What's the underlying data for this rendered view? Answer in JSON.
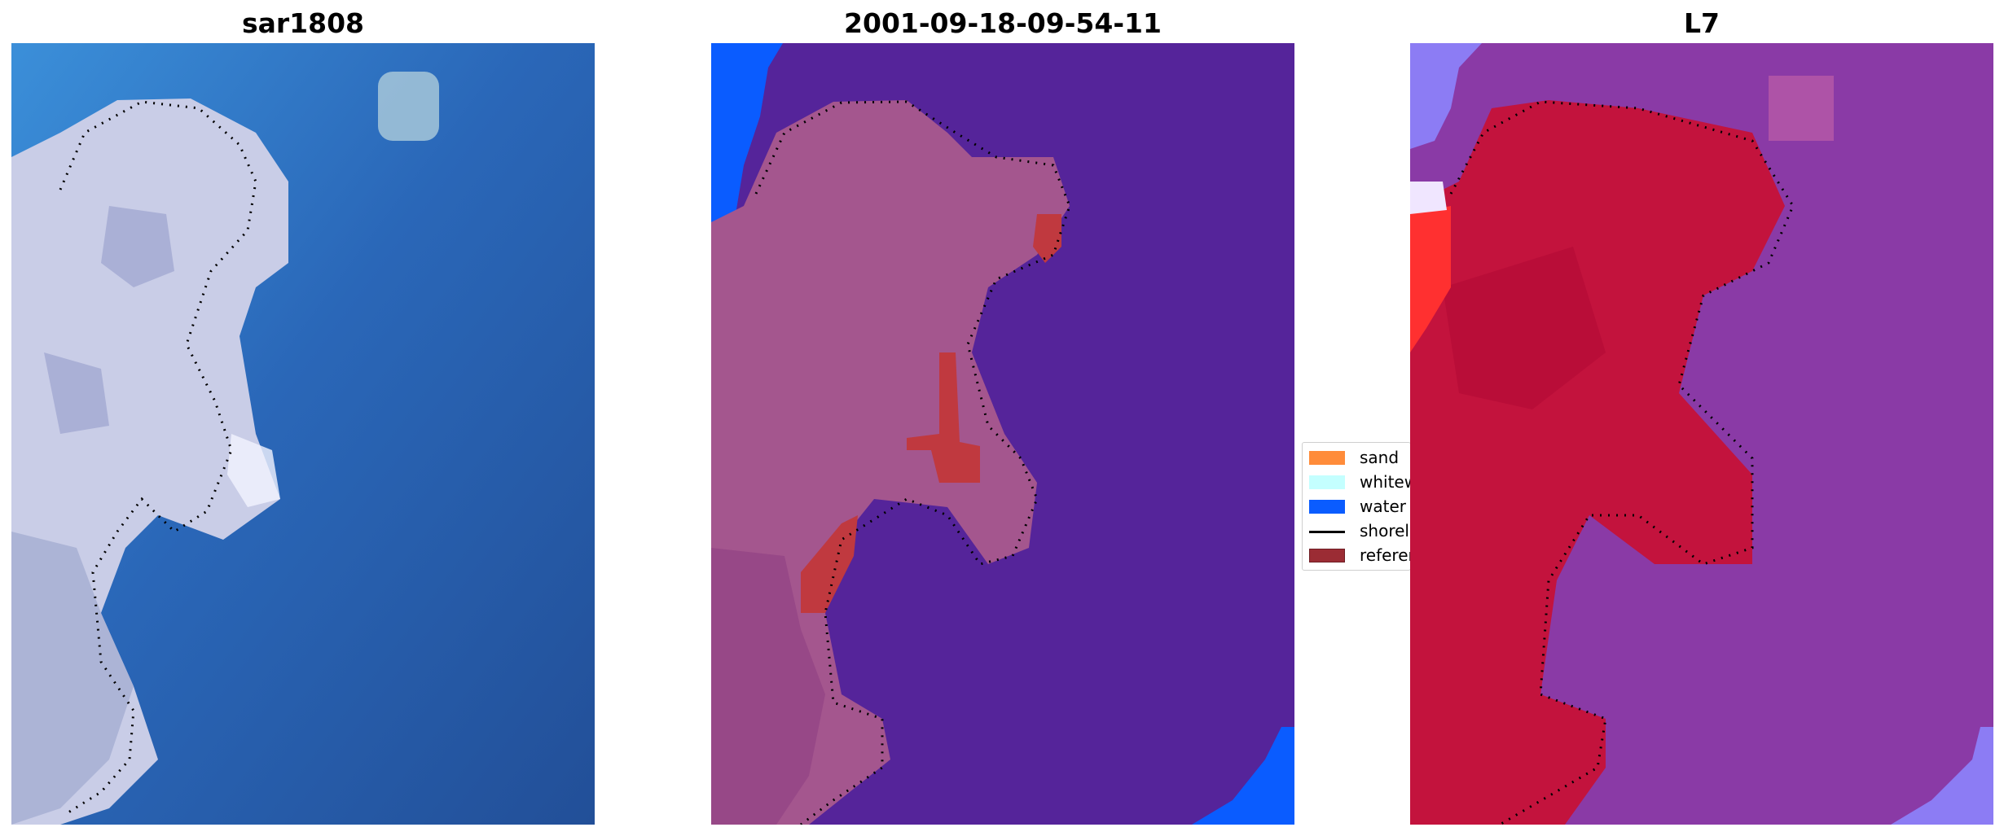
{
  "panels": [
    {
      "title": "sar1808"
    },
    {
      "title": "2001-09-18-09-54-11"
    },
    {
      "title": "L7"
    }
  ],
  "legend": {
    "items": [
      {
        "label": "sand",
        "color": "#ff8c3a",
        "kind": "patch"
      },
      {
        "label": "whitewater",
        "color": "#c4ffff",
        "kind": "patch"
      },
      {
        "label": "water",
        "color": "#0a5cff",
        "kind": "patch"
      },
      {
        "label": "shoreline",
        "color": "#000000",
        "kind": "line"
      },
      {
        "label": "reference shoreline",
        "color": "#9b2c34",
        "kind": "patch"
      }
    ]
  },
  "colors": {
    "water_rgb": "#2a5ea8",
    "land_rgb": "#c9cce6",
    "class_water_bg": "#55249a",
    "class_land": "#a4568e",
    "class_blue": "#0a5cff",
    "class_red": "#c0393f",
    "l7_bg": "#8a3aa6",
    "l7_land": "#c3133d",
    "l7_light": "#8c7cf4"
  }
}
